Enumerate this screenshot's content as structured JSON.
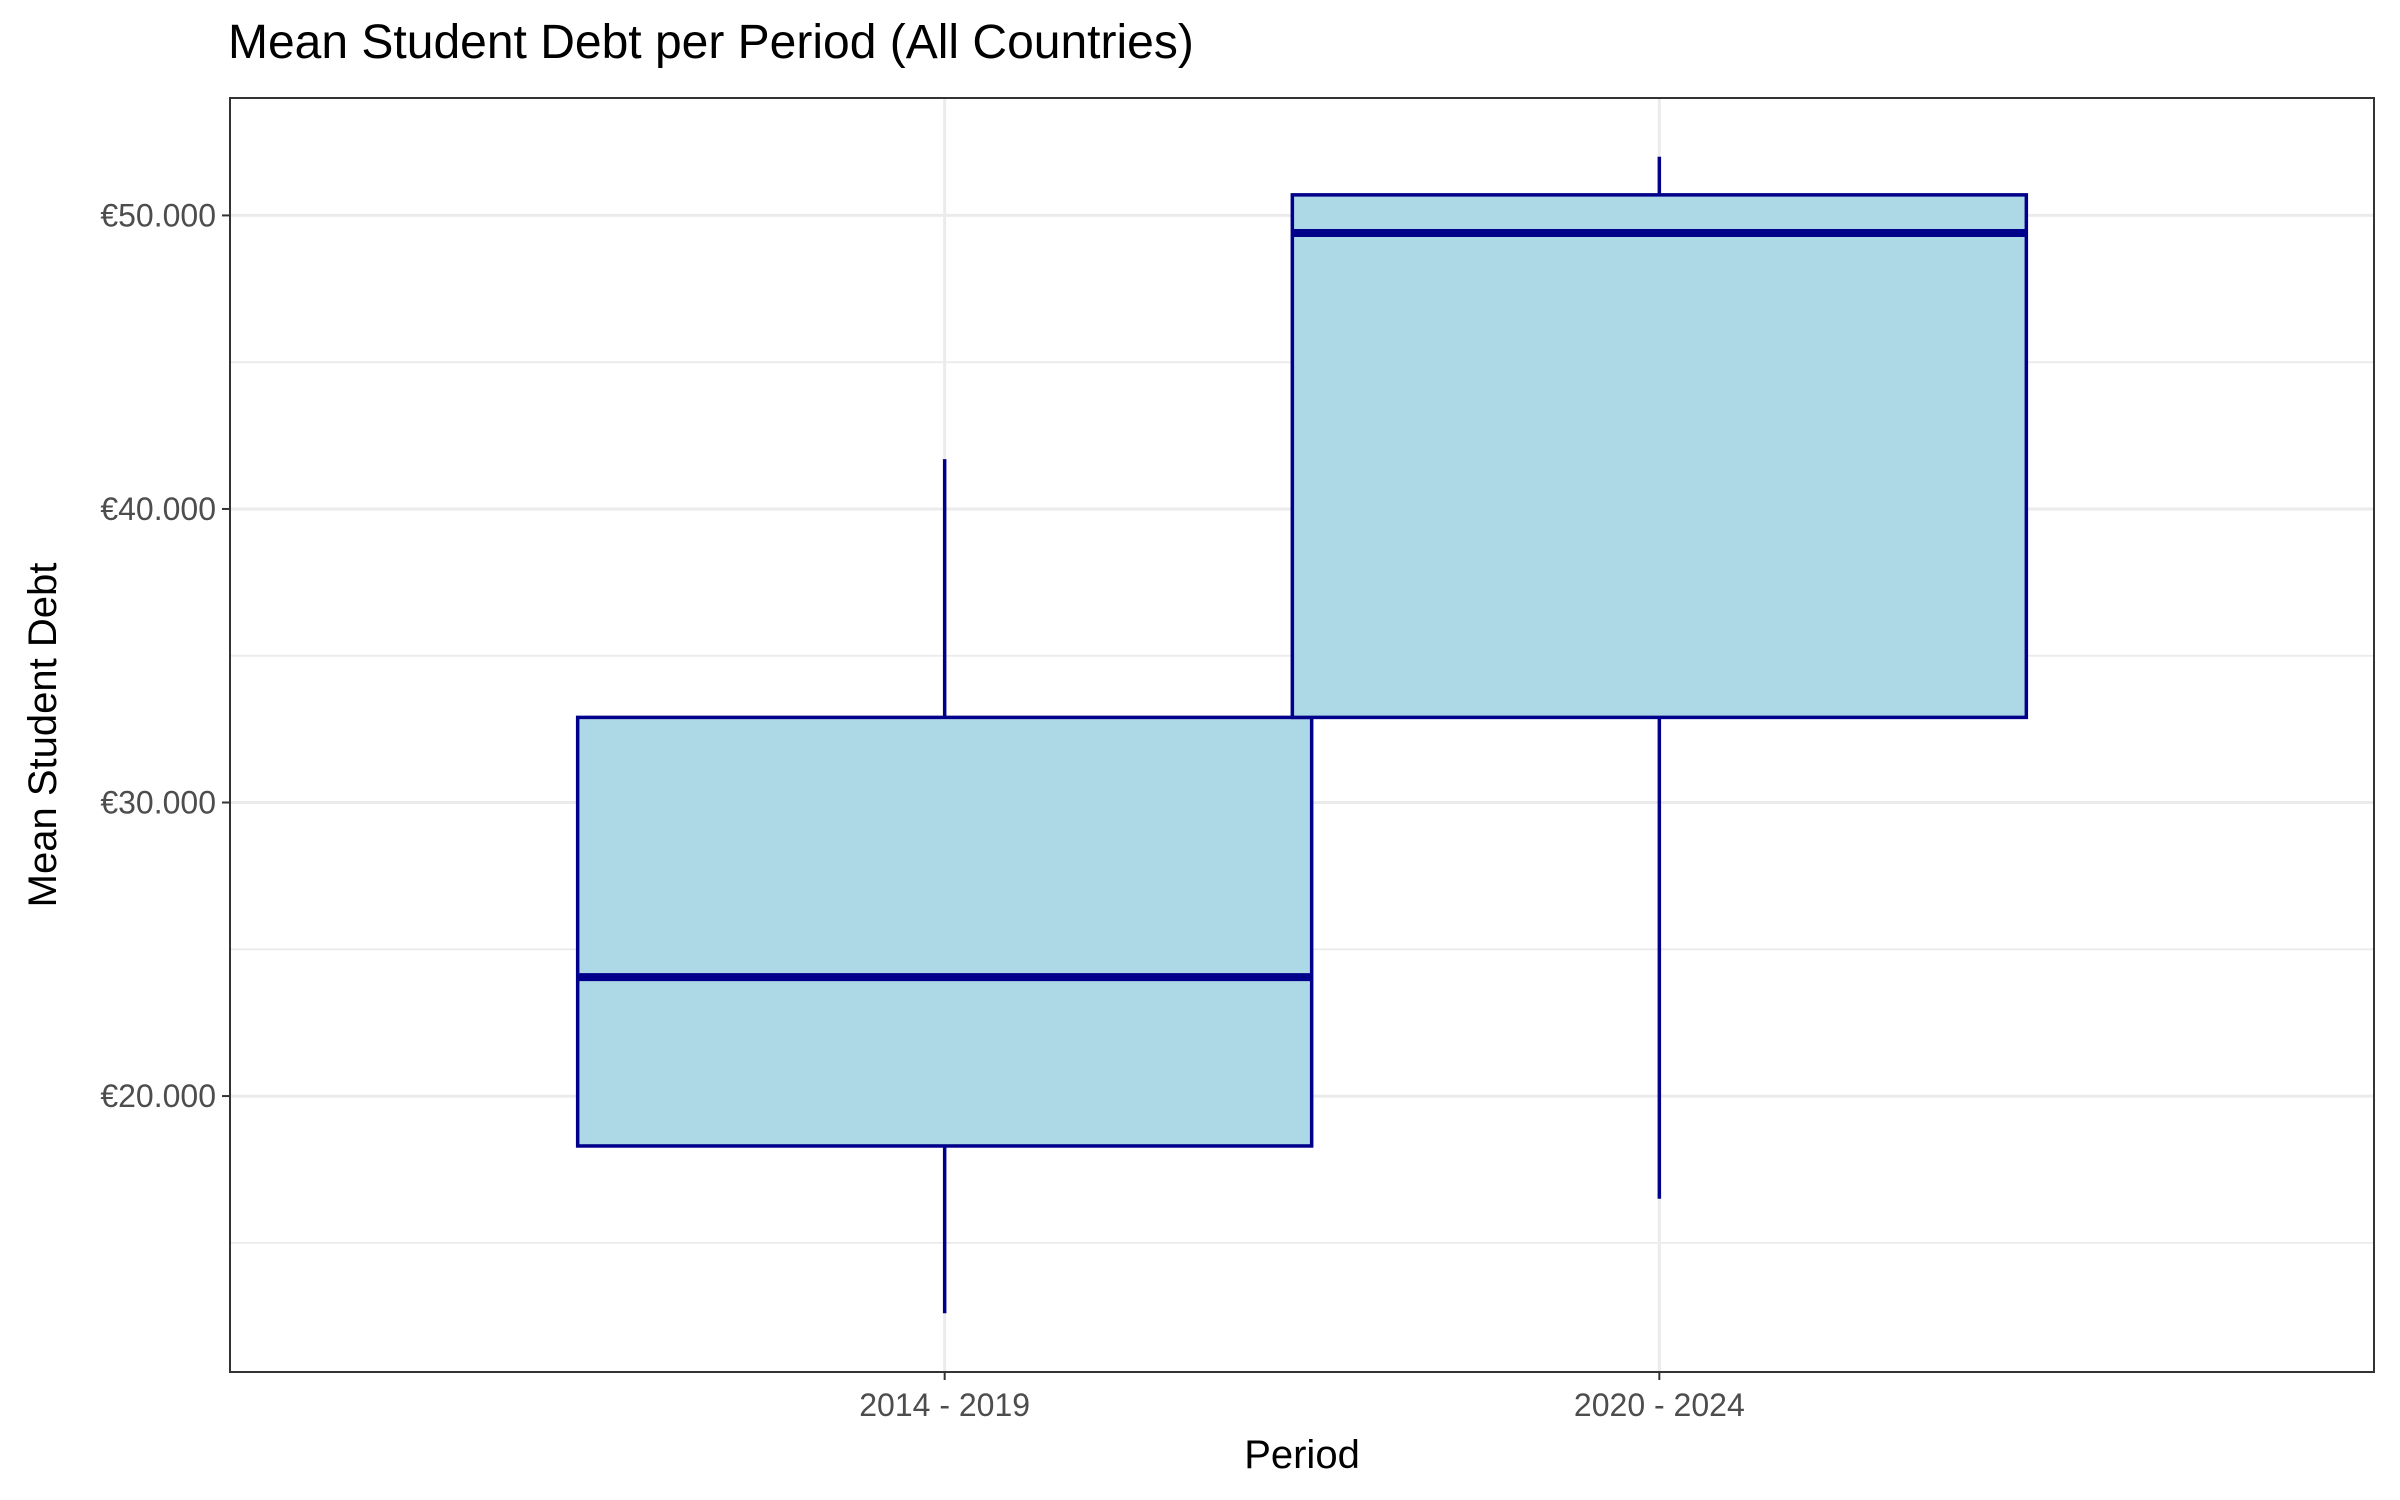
{
  "chart_data": {
    "type": "boxplot",
    "title": "Mean Student Debt per Period (All Countries)",
    "xlabel": "Period",
    "ylabel": "Mean Student Debt",
    "categories": [
      "2014 - 2019",
      "2020 - 2024"
    ],
    "boxes": [
      {
        "category": "2014 - 2019",
        "whisker_low": 12600,
        "q1": 18300,
        "median": 24050,
        "q3": 32900,
        "whisker_high": 41700
      },
      {
        "category": "2020 - 2024",
        "whisker_low": 16500,
        "q1": 32900,
        "median": 49400,
        "q3": 50700,
        "whisker_high": 52000
      }
    ],
    "y_ticks": [
      20000,
      30000,
      40000,
      50000
    ],
    "y_tick_labels": [
      "€20.000",
      "€30.000",
      "€40.000",
      "€50.000"
    ],
    "y_minor_ticks": [
      15000,
      25000,
      35000,
      45000
    ],
    "ylim": [
      10600,
      54000
    ],
    "grid": true,
    "legend": "none",
    "colors": {
      "box_fill": "#add8e6",
      "box_stroke": "#00008b"
    }
  }
}
